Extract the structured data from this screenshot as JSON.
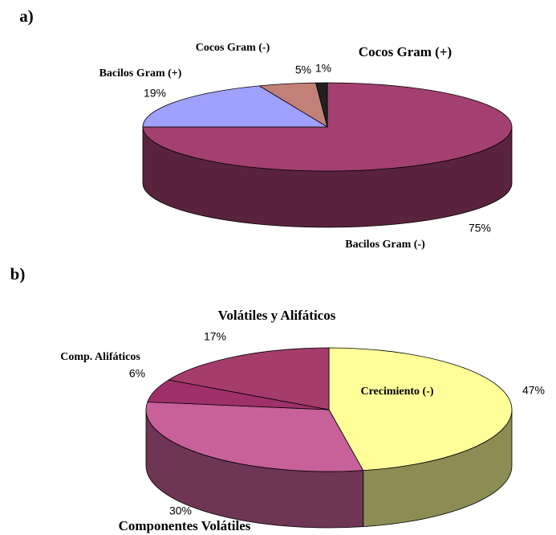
{
  "chart_data": [
    {
      "type": "pie",
      "title": "a)",
      "categories": [
        "Bacilos Gram (-)",
        "Bacilos Gram (+)",
        "Cocos Gram (-)",
        "Cocos Gram (+)"
      ],
      "values": [
        75,
        19,
        5,
        1
      ],
      "value_labels": [
        "75%",
        "19%",
        "5%",
        "1%"
      ],
      "colors": [
        "#a3406f",
        "#a0a0ff",
        "#c28078",
        "#202020"
      ]
    },
    {
      "type": "pie",
      "title": "b)",
      "categories": [
        "Crecimiento (-)",
        "Componentes Volátiles",
        "Comp. Alifáticos",
        "Volátiles y Alifáticos"
      ],
      "values": [
        47,
        30,
        6,
        17
      ],
      "value_labels": [
        "47%",
        "30%",
        "6%",
        "17%"
      ],
      "colors": [
        "#ffff99",
        "#c8609a",
        "#a0306a",
        "#a53c6c"
      ]
    }
  ]
}
